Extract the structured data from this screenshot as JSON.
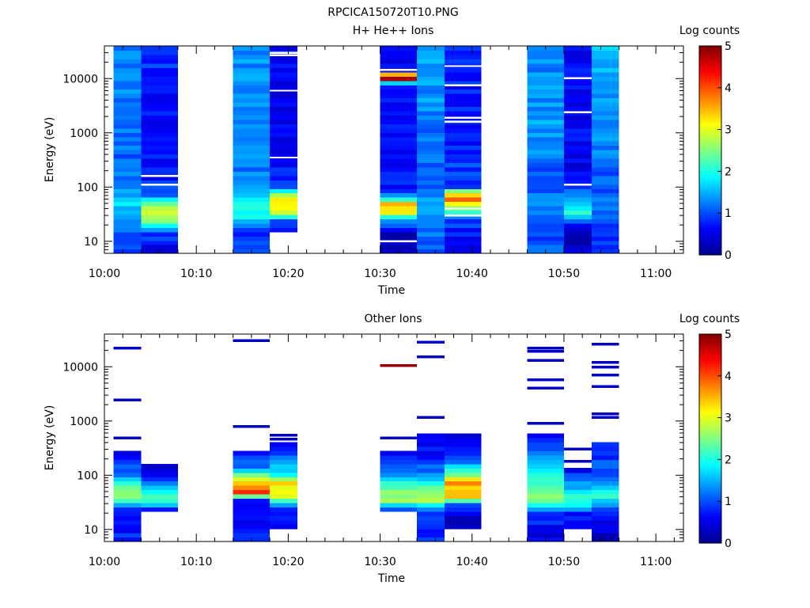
{
  "page_title": "RPCICA150720T10.PNG",
  "colormap": [
    "#00008f",
    "#0000ff",
    "#0080ff",
    "#00ffff",
    "#80ff80",
    "#ffff00",
    "#ff8000",
    "#ff0000",
    "#800000"
  ],
  "chart_data": [
    {
      "type": "heatmap",
      "title": "H+ He++ Ions",
      "xlabel": "Time",
      "ylabel": "Energy (eV)",
      "colorbar_label": "Log counts",
      "colorbar_ticks": [
        "0",
        "1",
        "2",
        "3",
        "4",
        "5"
      ],
      "x_ticks": [
        "10:00",
        "10:10",
        "10:20",
        "10:30",
        "10:40",
        "10:50",
        "11:00"
      ],
      "y_ticks": [
        "10",
        "100",
        "1000",
        "10000"
      ],
      "y_scale": "log",
      "ylim": [
        6,
        40000
      ],
      "xlim": [
        "10:00",
        "11:03"
      ],
      "zlim": [
        0,
        5
      ],
      "columns": [
        {
          "t0": "10:01",
          "t1": "10:04",
          "profile": [
            [
              6,
              1.0
            ],
            [
              10,
              0.9
            ],
            [
              25,
              1.3
            ],
            [
              50,
              1.8
            ],
            [
              70,
              1.4
            ],
            [
              200,
              1.1
            ],
            [
              2000,
              1.2
            ],
            [
              40000,
              1.3
            ]
          ]
        },
        {
          "t0": "10:04",
          "t1": "10:08",
          "profile": [
            [
              6,
              0.2
            ],
            [
              9,
              0.8
            ],
            [
              15,
              0.9
            ],
            [
              25,
              2.6
            ],
            [
              30,
              3.0
            ],
            [
              55,
              2.2
            ],
            [
              70,
              1.0
            ],
            [
              150,
              0.7
            ],
            [
              600,
              0.6
            ],
            [
              3000,
              0.7
            ],
            [
              40000,
              0.9
            ]
          ],
          "gaps": [
            110,
            160
          ]
        },
        {
          "t0": "10:14",
          "t1": "10:18",
          "profile": [
            [
              6,
              1.0
            ],
            [
              12,
              0.8
            ],
            [
              20,
              1.1
            ],
            [
              30,
              1.9
            ],
            [
              45,
              2.3
            ],
            [
              60,
              2.0
            ],
            [
              80,
              1.5
            ],
            [
              200,
              1.2
            ],
            [
              2000,
              1.3
            ],
            [
              40000,
              1.3
            ]
          ]
        },
        {
          "t0": "10:18",
          "t1": "10:21",
          "profile": [
            [
              15,
              0.4
            ],
            [
              25,
              1.2
            ],
            [
              35,
              2.8
            ],
            [
              55,
              3.5
            ],
            [
              70,
              3.0
            ],
            [
              100,
              0.8
            ],
            [
              1000,
              0.5
            ],
            [
              40000,
              0.6
            ]
          ],
          "gaps": [
            350,
            6000,
            27000,
            30000
          ]
        },
        {
          "t0": "10:30",
          "t1": "10:34",
          "profile": [
            [
              6,
              0.2
            ],
            [
              15,
              0.3
            ],
            [
              25,
              1.4
            ],
            [
              35,
              3.2
            ],
            [
              50,
              3.4
            ],
            [
              70,
              1.2
            ],
            [
              100,
              0.7
            ],
            [
              1000,
              0.6
            ],
            [
              8000,
              0.6
            ],
            [
              10000,
              4.8
            ],
            [
              11500,
              4.9
            ],
            [
              14000,
              0.5
            ],
            [
              40000,
              0.7
            ]
          ],
          "gaps": [
            10,
            14500
          ]
        },
        {
          "t0": "10:34",
          "t1": "10:37",
          "profile": [
            [
              6,
              1.0
            ],
            [
              20,
              1.2
            ],
            [
              60,
              1.4
            ],
            [
              100,
              1.0
            ],
            [
              1000,
              1.2
            ],
            [
              10000,
              1.4
            ],
            [
              40000,
              1.5
            ]
          ]
        },
        {
          "t0": "10:37",
          "t1": "10:41",
          "profile": [
            [
              6,
              0.3
            ],
            [
              15,
              0.7
            ],
            [
              25,
              1.0
            ],
            [
              40,
              2.5
            ],
            [
              60,
              3.8
            ],
            [
              80,
              3.2
            ],
            [
              100,
              1.0
            ],
            [
              1000,
              0.7
            ],
            [
              40000,
              0.8
            ]
          ],
          "gaps": [
            30,
            40,
            1600,
            1900,
            7500,
            17000
          ]
        },
        {
          "t0": "10:46",
          "t1": "10:50",
          "profile": [
            [
              6,
              1.0
            ],
            [
              25,
              1.0
            ],
            [
              60,
              1.3
            ],
            [
              100,
              0.9
            ],
            [
              1000,
              1.4
            ],
            [
              10000,
              1.3
            ],
            [
              40000,
              1.3
            ]
          ]
        },
        {
          "t0": "10:50",
          "t1": "10:53",
          "profile": [
            [
              6,
              0.3
            ],
            [
              20,
              0.4
            ],
            [
              30,
              2.0
            ],
            [
              45,
              1.8
            ],
            [
              80,
              1.2
            ],
            [
              150,
              0.5
            ],
            [
              1000,
              0.6
            ],
            [
              40000,
              0.6
            ]
          ],
          "gaps": [
            110,
            2400,
            10200
          ]
        },
        {
          "t0": "10:53",
          "t1": "10:56",
          "profile": [
            [
              6,
              0.8
            ],
            [
              15,
              0.9
            ],
            [
              30,
              1.2
            ],
            [
              60,
              1.3
            ],
            [
              100,
              1.0
            ],
            [
              1000,
              1.4
            ],
            [
              40000,
              1.5
            ]
          ]
        }
      ]
    },
    {
      "type": "heatmap",
      "title": "Other Ions",
      "xlabel": "Time",
      "ylabel": "Energy (eV)",
      "colorbar_label": "Log counts",
      "colorbar_ticks": [
        "0",
        "1",
        "2",
        "3",
        "4",
        "5"
      ],
      "x_ticks": [
        "10:00",
        "10:10",
        "10:20",
        "10:30",
        "10:40",
        "10:50",
        "11:00"
      ],
      "y_ticks": [
        "10",
        "100",
        "1000",
        "10000"
      ],
      "y_scale": "log",
      "ylim": [
        6,
        40000
      ],
      "xlim": [
        "10:00",
        "11:03"
      ],
      "zlim": [
        0,
        5
      ],
      "columns": [
        {
          "t0": "10:01",
          "t1": "10:04",
          "profile": [
            [
              6,
              0.8
            ],
            [
              15,
              0.6
            ],
            [
              25,
              1.0
            ],
            [
              40,
              2.8
            ],
            [
              55,
              2.6
            ],
            [
              80,
              1.6
            ],
            [
              150,
              1.0
            ],
            [
              280,
              0.6
            ]
          ],
          "lines": [
            [
              480,
              0.3
            ],
            [
              2400,
              0.3
            ],
            [
              22000,
              0.3
            ]
          ]
        },
        {
          "t0": "10:04",
          "t1": "10:08",
          "profile": [
            [
              20,
              0.3
            ],
            [
              25,
              1.1
            ],
            [
              30,
              1.8
            ],
            [
              45,
              2.3
            ],
            [
              70,
              1.3
            ],
            [
              90,
              0.5
            ],
            [
              160,
              0.4
            ]
          ]
        },
        {
          "t0": "10:14",
          "t1": "10:18",
          "profile": [
            [
              6,
              0.8
            ],
            [
              20,
              0.5
            ],
            [
              35,
              0.9
            ],
            [
              50,
              4.3
            ],
            [
              60,
              3.6
            ],
            [
              90,
              2.8
            ],
            [
              130,
              1.3
            ],
            [
              300,
              0.6
            ]
          ],
          "lines": [
            [
              780,
              0.3
            ],
            [
              30000,
              0.3
            ]
          ]
        },
        {
          "t0": "10:18",
          "t1": "10:21",
          "profile": [
            [
              10,
              0.4
            ],
            [
              25,
              0.8
            ],
            [
              30,
              1.5
            ],
            [
              40,
              3.0
            ],
            [
              70,
              3.3
            ],
            [
              100,
              2.1
            ],
            [
              200,
              1.1
            ],
            [
              380,
              0.6
            ]
          ],
          "lines": [
            [
              460,
              0.3
            ],
            [
              540,
              0.3
            ]
          ]
        },
        {
          "t0": "10:30",
          "t1": "10:34",
          "profile": [
            [
              20,
              0.3
            ],
            [
              25,
              1.1
            ],
            [
              35,
              2.8
            ],
            [
              55,
              2.5
            ],
            [
              90,
              1.6
            ],
            [
              150,
              1.0
            ],
            [
              270,
              0.6
            ]
          ],
          "lines": [
            [
              480,
              0.3
            ],
            [
              10500,
              4.9
            ]
          ]
        },
        {
          "t0": "10:34",
          "t1": "10:37",
          "profile": [
            [
              6,
              0.8
            ],
            [
              15,
              0.7
            ],
            [
              25,
              1.2
            ],
            [
              35,
              2.7
            ],
            [
              60,
              2.3
            ],
            [
              100,
              1.4
            ],
            [
              200,
              0.7
            ],
            [
              560,
              0.5
            ]
          ],
          "lines": [
            [
              1150,
              0.3
            ],
            [
              15000,
              0.3
            ],
            [
              28000,
              0.3
            ]
          ]
        },
        {
          "t0": "10:37",
          "t1": "10:41",
          "profile": [
            [
              10,
              0.3
            ],
            [
              20,
              0.4
            ],
            [
              30,
              1.0
            ],
            [
              40,
              3.3
            ],
            [
              70,
              3.6
            ],
            [
              110,
              2.3
            ],
            [
              200,
              1.1
            ],
            [
              560,
              0.5
            ]
          ]
        },
        {
          "t0": "10:46",
          "t1": "10:50",
          "profile": [
            [
              6,
              0.5
            ],
            [
              20,
              0.8
            ],
            [
              30,
              2.2
            ],
            [
              45,
              2.6
            ],
            [
              70,
              2.0
            ],
            [
              150,
              1.8
            ],
            [
              300,
              1.2
            ],
            [
              620,
              0.6
            ]
          ],
          "lines": [
            [
              900,
              0.3
            ],
            [
              4000,
              0.3
            ],
            [
              5700,
              0.3
            ],
            [
              13000,
              0.3
            ],
            [
              19000,
              0.3
            ],
            [
              22000,
              0.3
            ]
          ]
        },
        {
          "t0": "10:50",
          "t1": "10:53",
          "profile": [
            [
              10,
              0.4
            ],
            [
              20,
              0.8
            ],
            [
              30,
              1.8
            ],
            [
              45,
              2.0
            ],
            [
              70,
              1.3
            ],
            [
              130,
              0.6
            ]
          ],
          "lines": [
            [
              180,
              0.3
            ],
            [
              300,
              0.3
            ]
          ]
        },
        {
          "t0": "10:53",
          "t1": "10:56",
          "profile": [
            [
              6,
              0.3
            ],
            [
              15,
              0.4
            ],
            [
              25,
              1.2
            ],
            [
              40,
              2.0
            ],
            [
              80,
              1.3
            ],
            [
              150,
              1.0
            ],
            [
              380,
              0.7
            ]
          ],
          "lines": [
            [
              1150,
              0.3
            ],
            [
              1350,
              0.3
            ],
            [
              4300,
              0.3
            ],
            [
              7000,
              0.3
            ],
            [
              9800,
              0.3
            ],
            [
              12000,
              0.3
            ],
            [
              26000,
              0.3
            ]
          ]
        }
      ]
    }
  ]
}
